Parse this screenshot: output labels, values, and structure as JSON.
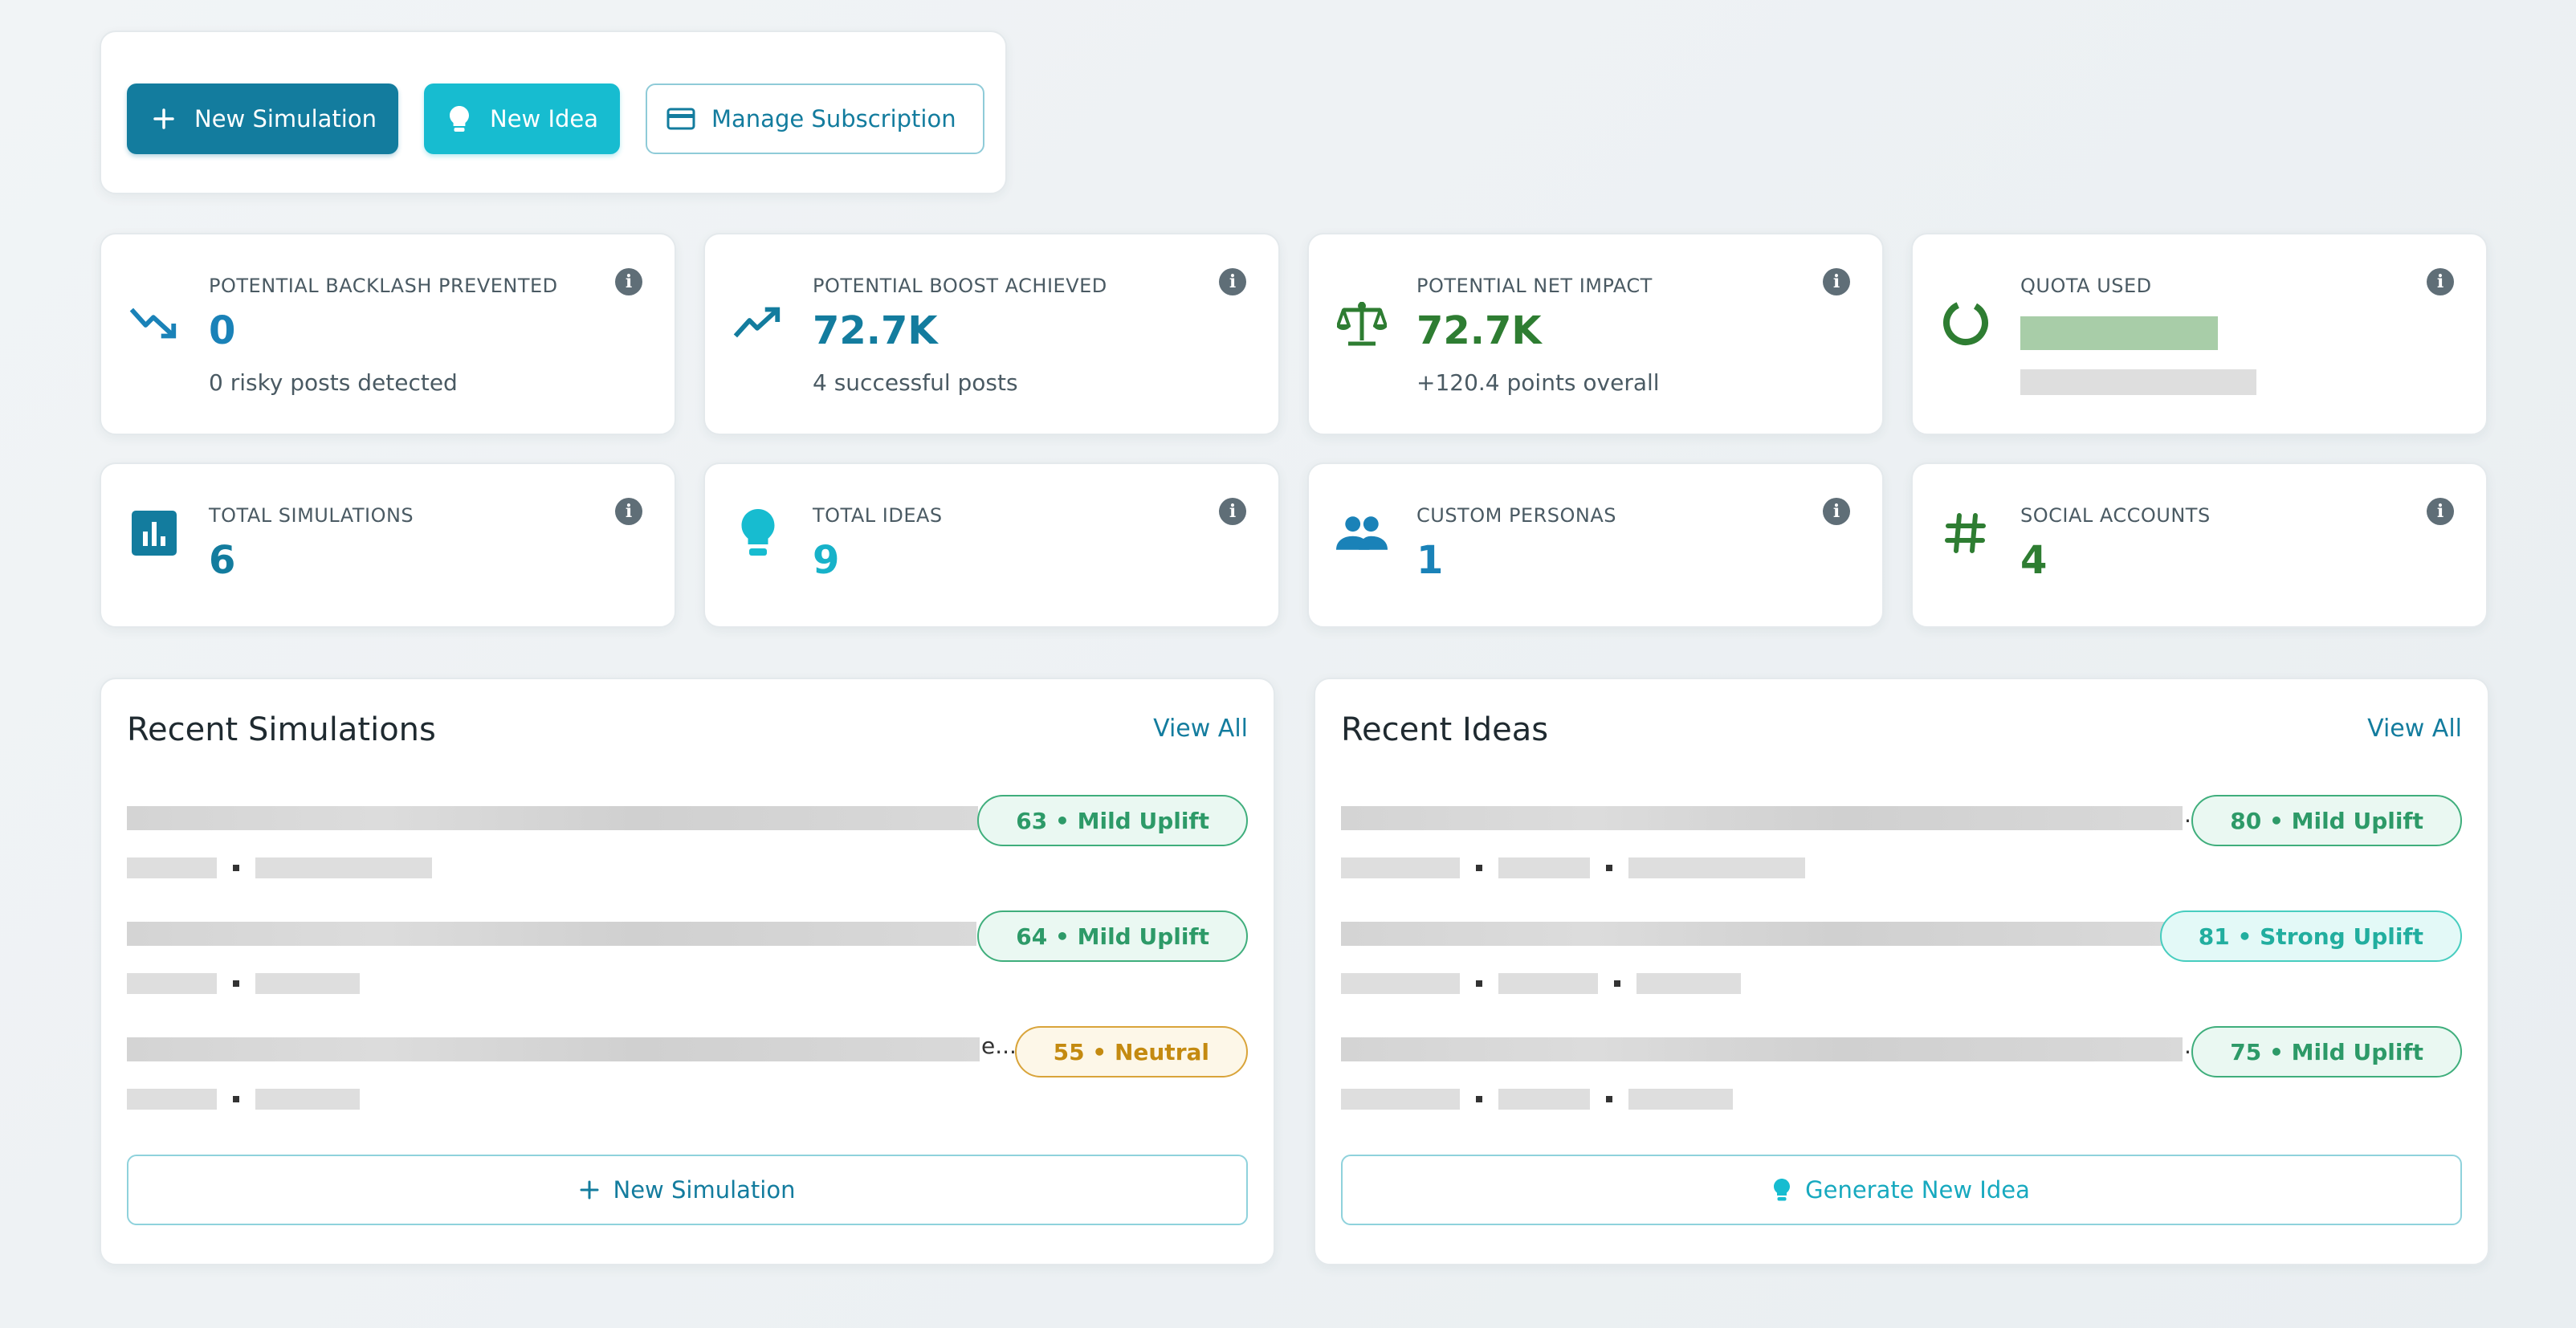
{
  "actions": {
    "new_simulation": "New Simulation",
    "new_idea": "New Idea",
    "manage_subscription": "Manage Subscription"
  },
  "stats": {
    "backlash": {
      "label": "POTENTIAL BACKLASH PREVENTED",
      "value": "0",
      "sub": "0 risky posts detected",
      "icon": "trending-down-icon"
    },
    "boost": {
      "label": "POTENTIAL BOOST ACHIEVED",
      "value": "72.7K",
      "sub": "4 successful posts",
      "icon": "trending-up-icon"
    },
    "net": {
      "label": "POTENTIAL NET IMPACT",
      "value": "72.7K",
      "sub": "+120.4 points overall",
      "icon": "balance-scale-icon"
    },
    "quota": {
      "label": "QUOTA USED",
      "icon": "donut-progress-icon"
    },
    "simulations": {
      "label": "TOTAL SIMULATIONS",
      "value": "6",
      "icon": "bar-chart-icon"
    },
    "ideas": {
      "label": "TOTAL IDEAS",
      "value": "9",
      "icon": "lightbulb-icon"
    },
    "personas": {
      "label": "CUSTOM PERSONAS",
      "value": "1",
      "icon": "people-icon"
    },
    "social": {
      "label": "SOCIAL ACCOUNTS",
      "value": "4",
      "icon": "hashtag-icon"
    }
  },
  "info_glyph": "i",
  "recent_simulations": {
    "title": "Recent Simulations",
    "view_all": "View All",
    "items": [
      {
        "badge": "63 • Mild Uplift",
        "sentiment": "mild"
      },
      {
        "badge": "64 • Mild Uplift",
        "sentiment": "mild"
      },
      {
        "badge": "55 • Neutral",
        "sentiment": "neutral",
        "truncation": "e..."
      }
    ],
    "button": "New Simulation"
  },
  "recent_ideas": {
    "title": "Recent Ideas",
    "view_all": "View All",
    "items": [
      {
        "badge": "80 • Mild Uplift",
        "sentiment": "mild",
        "truncation": ".."
      },
      {
        "badge": "81 • Strong Uplift",
        "sentiment": "strong"
      },
      {
        "badge": "75 • Mild Uplift",
        "sentiment": "mild",
        "truncation": "..."
      }
    ],
    "button": "Generate New Idea"
  },
  "colors": {
    "primary": "#137c9e",
    "teal": "#17bcd0",
    "blue_stat": "#1a82b8",
    "green_stat": "#2e7d32",
    "mild": "#2d9a68",
    "strong": "#21ae9f",
    "neutral": "#c48a10"
  }
}
